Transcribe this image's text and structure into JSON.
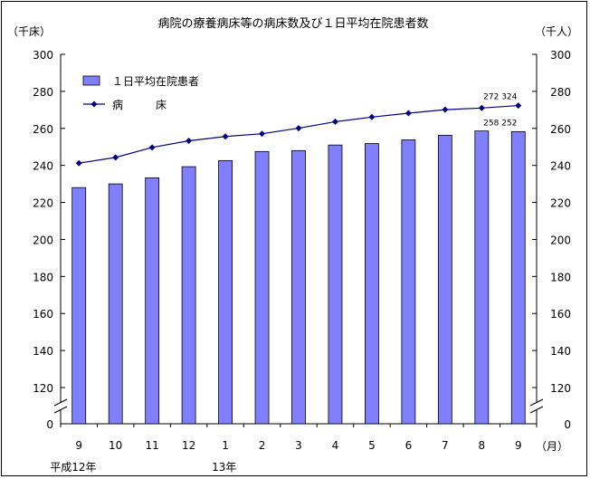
{
  "chart_data": {
    "type": "bar+line",
    "title": "病院の療養病床等の病床数及び１日平均在院患者数",
    "left_unit": "（千床）",
    "right_unit": "（千人）",
    "x_unit": "（月）",
    "categories": [
      "9",
      "10",
      "11",
      "12",
      "1",
      "2",
      "3",
      "4",
      "5",
      "6",
      "7",
      "8",
      "9"
    ],
    "era_labels": [
      {
        "text": "平成12年",
        "category_index": 0
      },
      {
        "text": "13年",
        "category_index": 4
      }
    ],
    "y_ticks_left": [
      "300",
      "280",
      "260",
      "240",
      "220",
      "200",
      "180",
      "160",
      "140",
      "120",
      "0"
    ],
    "y_ticks_right": [
      "300",
      "280",
      "260",
      "240",
      "220",
      "200",
      "180",
      "160",
      "140",
      "120",
      "0"
    ],
    "ylim": [
      110,
      300
    ],
    "axis_break": true,
    "legend": {
      "bar_label": "１日平均在院患者",
      "line_label": "病　　　床",
      "placement": "top-left"
    },
    "series": [
      {
        "name": "１日平均在院患者",
        "kind": "bar",
        "color": "#8080ff",
        "values": [
          228.0,
          230.0,
          233.3,
          239.3,
          242.6,
          247.5,
          248.0,
          251.0,
          251.8,
          253.8,
          256.3,
          258.6,
          258.252
        ]
      },
      {
        "name": "病　　　床",
        "kind": "line",
        "color": "#000080",
        "values": [
          241.2,
          244.3,
          249.7,
          253.3,
          255.6,
          257.1,
          260.1,
          263.6,
          266.1,
          268.2,
          270.1,
          271.0,
          272.324
        ]
      }
    ],
    "annotations": [
      {
        "text": "272 324",
        "series": 1,
        "index": 12
      },
      {
        "text": "258 252",
        "series": 0,
        "index": 12
      }
    ]
  }
}
